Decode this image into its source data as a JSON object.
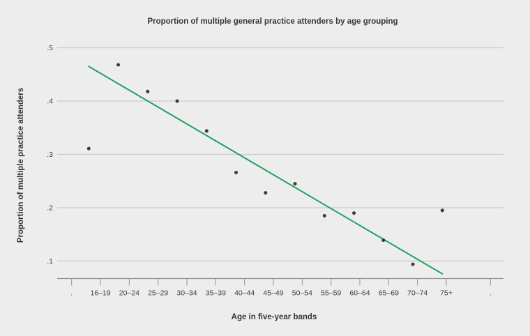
{
  "page": {
    "background_color": "#ededed",
    "text_color": "#373737"
  },
  "chart_data": {
    "type": "scatter",
    "title": "Proportion of multiple general practice attenders by age grouping",
    "xlabel": "Age in five-year bands",
    "ylabel": "Proportion of multiple practice attenders",
    "categories": [
      "16–19",
      "20–24",
      "25–29",
      "30–34",
      "35–39",
      "40–44",
      "45–49",
      "50–54",
      "55–59",
      "60–64",
      "65–69",
      "70–74",
      "75+"
    ],
    "values": [
      0.311,
      0.468,
      0.418,
      0.4,
      0.344,
      0.266,
      0.228,
      0.245,
      0.185,
      0.19,
      0.139,
      0.094,
      0.195
    ],
    "x_tick_labels": [
      ".",
      "16–19",
      "20–24",
      "25–29",
      "30–34",
      "35–39",
      "40–44",
      "45–49",
      "50–54",
      "55–59",
      "60–64",
      "65–69",
      "70–74",
      "75+",
      "."
    ],
    "y_tick_labels": [
      ".1",
      ".2",
      ".3",
      ".4",
      ".5"
    ],
    "y_tick_values": [
      0.1,
      0.2,
      0.3,
      0.4,
      0.5
    ],
    "ylim": [
      0.06,
      0.52
    ],
    "grid": true,
    "legend": "none",
    "trend_line": {
      "kind": "linear-fit",
      "start_value": 0.465,
      "end_value": 0.076,
      "color": "#14a05c"
    },
    "point_color": "#3d3a37",
    "gridline_color": "#c9cacb",
    "axis_line_color": "#8f9394"
  }
}
